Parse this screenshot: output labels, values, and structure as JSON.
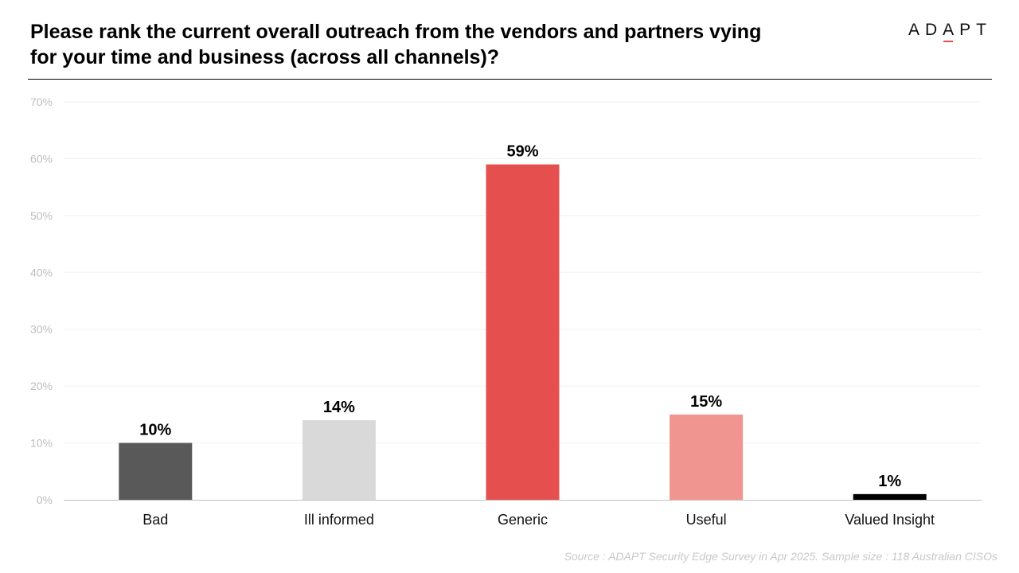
{
  "header": {
    "title_line1": "Please rank the current overall outreach from the vendors and partners vying",
    "title_line2": "for your time and business (across all channels)?",
    "logo_text": "ADAPT"
  },
  "footer": {
    "source": "Source : ADAPT Security Edge Survey in Apr 2025. Sample size : 118 Australian CISOs"
  },
  "chart_data": {
    "type": "bar",
    "title": "Please rank the current overall outreach from the vendors and partners vying for your time and business (across all channels)?",
    "categories": [
      "Bad",
      "Ill informed",
      "Generic",
      "Useful",
      "Valued Insight"
    ],
    "values": [
      10,
      14,
      59,
      15,
      1
    ],
    "value_labels": [
      "10%",
      "14%",
      "59%",
      "15%",
      "1%"
    ],
    "colors": [
      "#595959",
      "#d9d9d9",
      "#e5504f",
      "#f0958f",
      "#000000"
    ],
    "ylim": [
      0,
      70
    ],
    "yticks": [
      0,
      10,
      20,
      30,
      40,
      50,
      60,
      70
    ],
    "ytick_labels": [
      "0%",
      "10%",
      "20%",
      "30%",
      "40%",
      "50%",
      "60%",
      "70%"
    ],
    "grid": true,
    "legend": "none",
    "xlabel": "",
    "ylabel": ""
  }
}
